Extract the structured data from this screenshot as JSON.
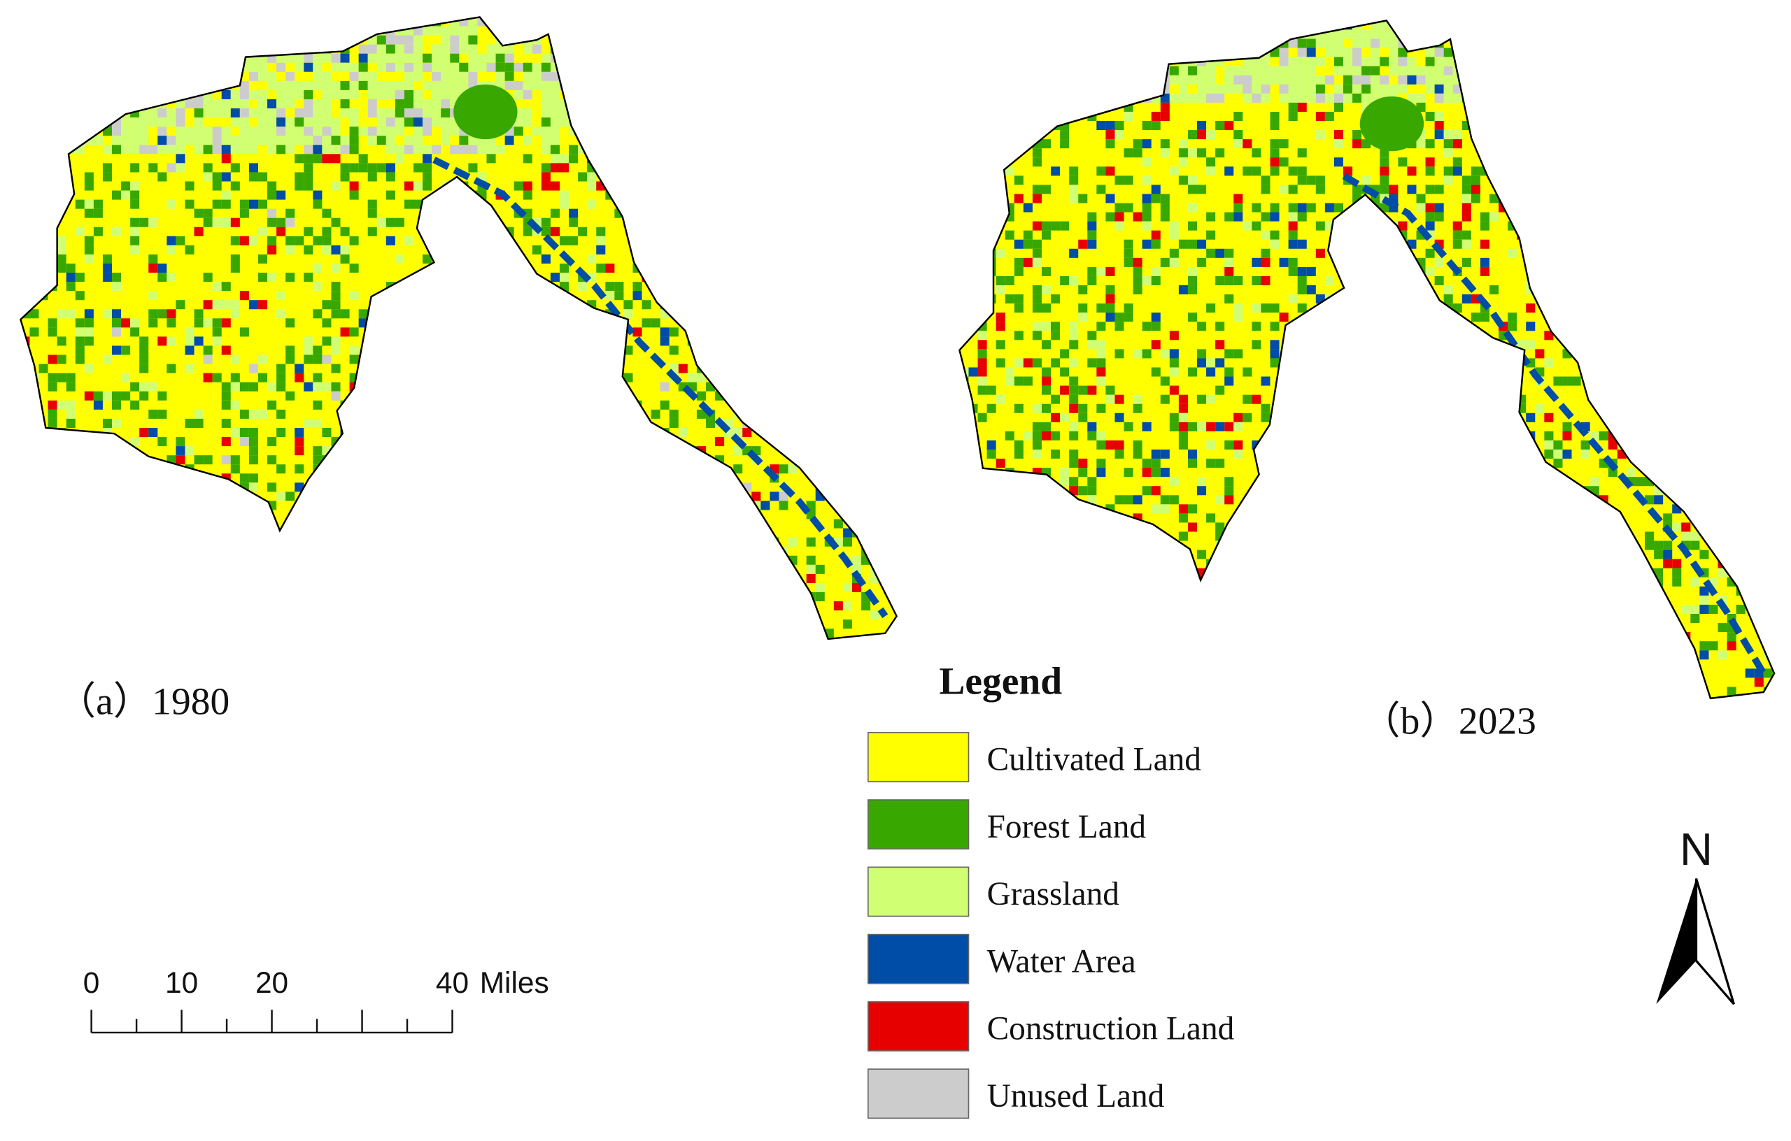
{
  "maps": [
    {
      "caption": "（a）1980"
    },
    {
      "caption": "（b）2023"
    }
  ],
  "legend": {
    "title": "Legend",
    "items": [
      {
        "name": "Cultivated Land",
        "color": "#ffff00"
      },
      {
        "name": "Forest Land",
        "color": "#38a800"
      },
      {
        "name": "Grassland",
        "color": "#d1ff73"
      },
      {
        "name": "Water Area",
        "color": "#004da8"
      },
      {
        "name": "Construction Land",
        "color": "#e60000"
      },
      {
        "name": "Unused Land",
        "color": "#cccccc"
      }
    ]
  },
  "scale_bar": {
    "ticks": [
      0,
      10,
      20,
      40
    ],
    "unit": "Miles"
  },
  "north_arrow": {
    "label": "N"
  }
}
